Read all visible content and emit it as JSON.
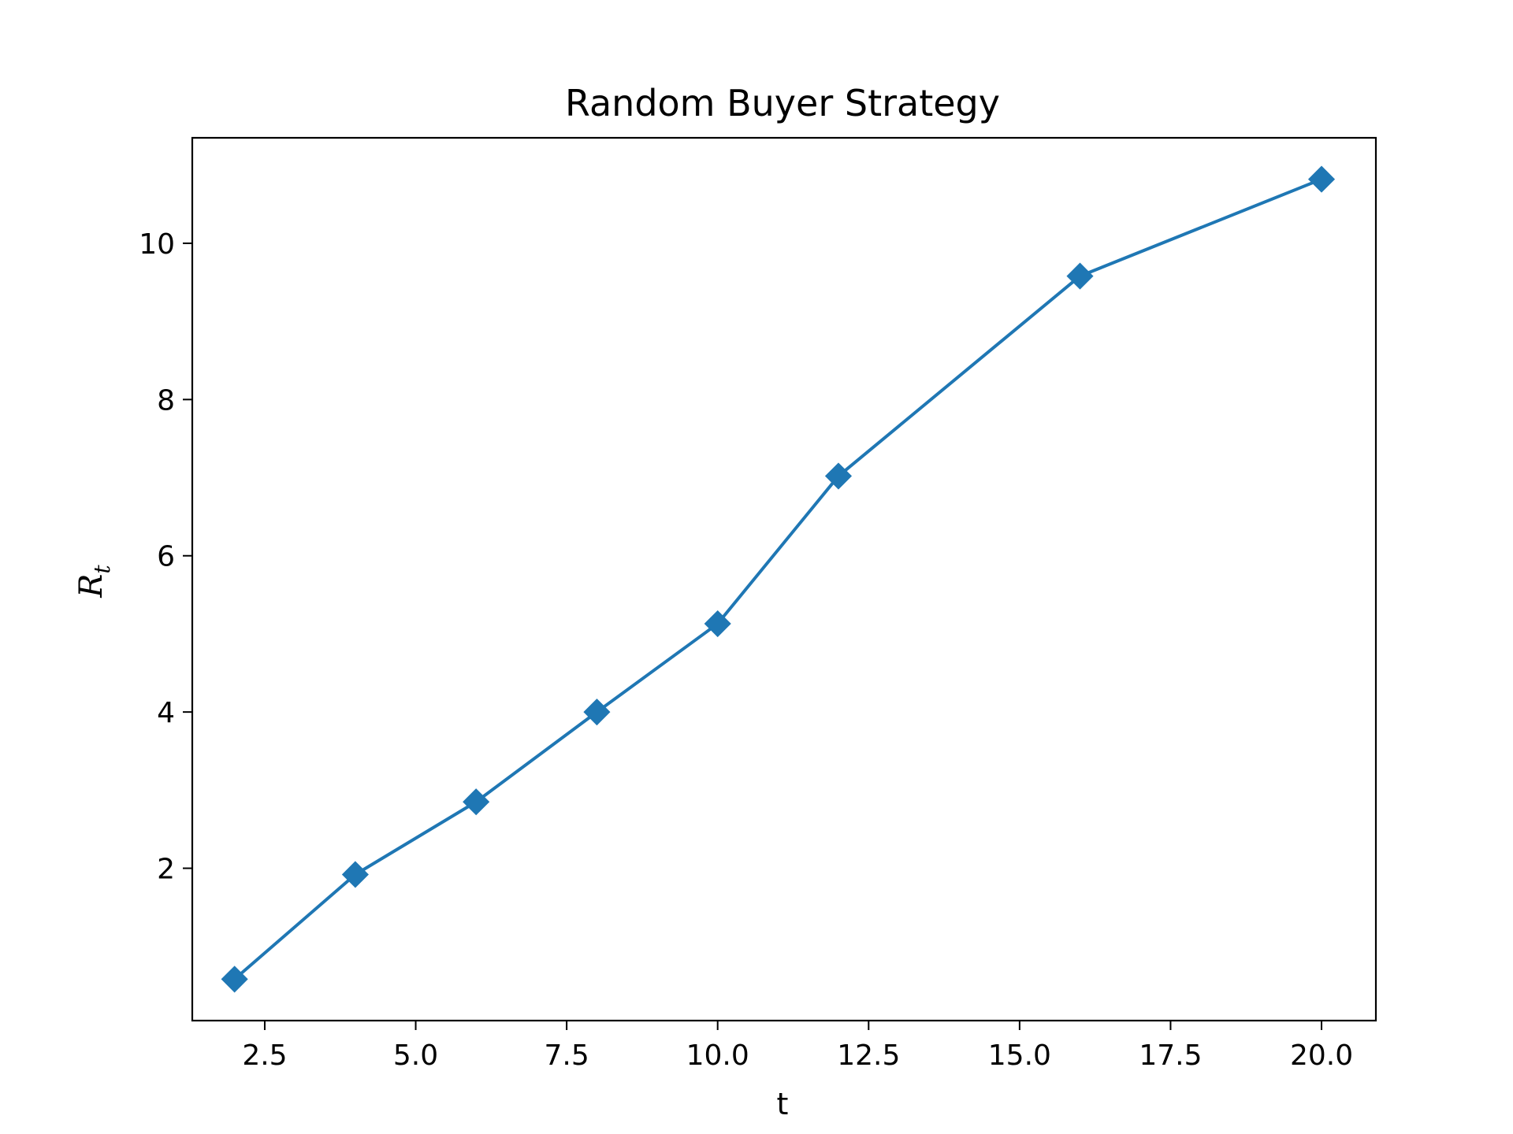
{
  "chart_data": {
    "type": "line",
    "title": "Random Buyer Strategy",
    "xlabel": "t",
    "ylabel": {
      "main": "R",
      "subscript": "t"
    },
    "xlim": [
      1.3,
      20.9
    ],
    "ylim": [
      0.05,
      11.35
    ],
    "xticks": [
      2.5,
      5.0,
      7.5,
      10.0,
      12.5,
      15.0,
      17.5,
      20.0
    ],
    "xtick_labels": [
      "2.5",
      "5.0",
      "7.5",
      "10.0",
      "12.5",
      "15.0",
      "17.5",
      "20.0"
    ],
    "yticks": [
      2,
      4,
      6,
      8,
      10
    ],
    "ytick_labels": [
      "2",
      "4",
      "6",
      "8",
      "10"
    ],
    "grid": false,
    "marker": "diamond",
    "series": [
      {
        "x": [
          2,
          4,
          6,
          8,
          10,
          12,
          16,
          20
        ],
        "y": [
          0.58,
          1.92,
          2.85,
          4.0,
          5.13,
          7.02,
          9.58,
          10.82
        ],
        "color": "#1f77b4"
      }
    ]
  }
}
